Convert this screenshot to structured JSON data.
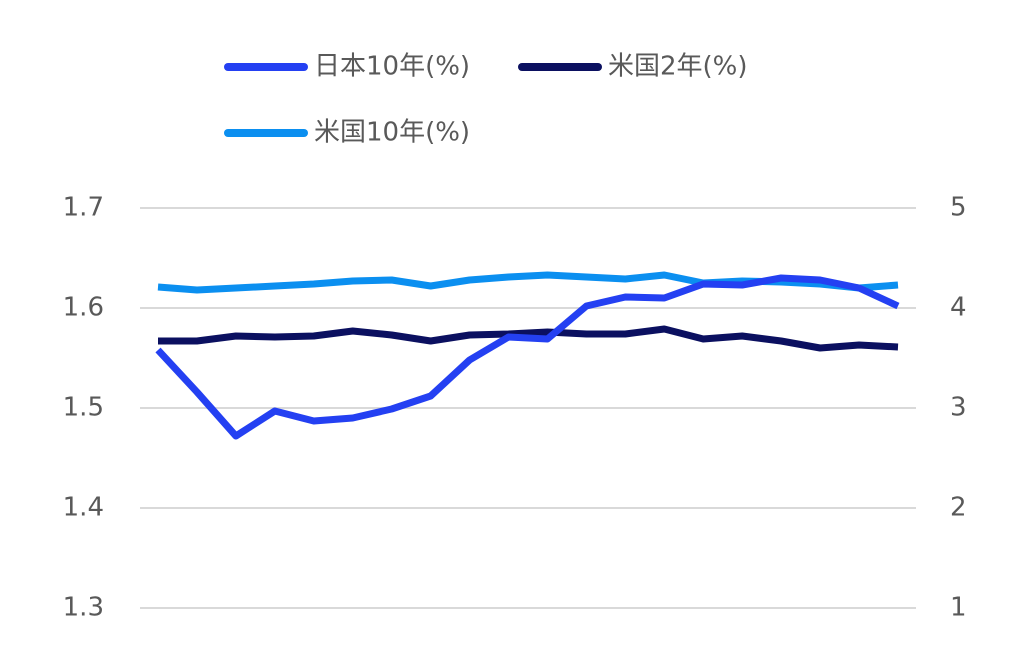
{
  "chart_data": {
    "type": "line",
    "categories": [
      null,
      null,
      null,
      null,
      null,
      null,
      null,
      null,
      null,
      null,
      null,
      null,
      null,
      null,
      null,
      null,
      null,
      null,
      null,
      null
    ],
    "series": [
      {
        "name": "日本10年(%)",
        "color": "#2440f2",
        "values": [
          1.558,
          1.516,
          1.472,
          1.497,
          1.487,
          1.49,
          1.499,
          1.512,
          1.548,
          1.571,
          1.569,
          1.602,
          1.611,
          1.61,
          1.624,
          1.623,
          1.63,
          1.628,
          1.62,
          1.602
        ]
      },
      {
        "name": "米国2年(%)",
        "color": "#0b1060",
        "axis": "y2",
        "values": [
          3.67,
          3.67,
          3.72,
          3.71,
          3.72,
          3.77,
          3.73,
          3.67,
          3.73,
          3.74,
          3.76,
          3.74,
          3.74,
          3.79,
          3.69,
          3.72,
          3.67,
          3.6,
          3.63,
          3.61
        ]
      },
      {
        "name": "米国10年(%)",
        "color": "#0b8ff0",
        "axis": "y2",
        "values": [
          4.21,
          4.18,
          4.2,
          4.22,
          4.24,
          4.27,
          4.28,
          4.22,
          4.28,
          4.31,
          4.33,
          4.31,
          4.29,
          4.33,
          4.25,
          4.27,
          4.26,
          4.24,
          4.2,
          4.23
        ]
      }
    ],
    "ylim": [
      1.3,
      1.7
    ],
    "yticks": [
      1.3,
      1.4,
      1.5,
      1.6,
      1.7
    ],
    "y2lim": [
      1,
      5
    ],
    "y2ticks": [
      1,
      2,
      3,
      4,
      5
    ],
    "grid": true,
    "legend": "top"
  }
}
